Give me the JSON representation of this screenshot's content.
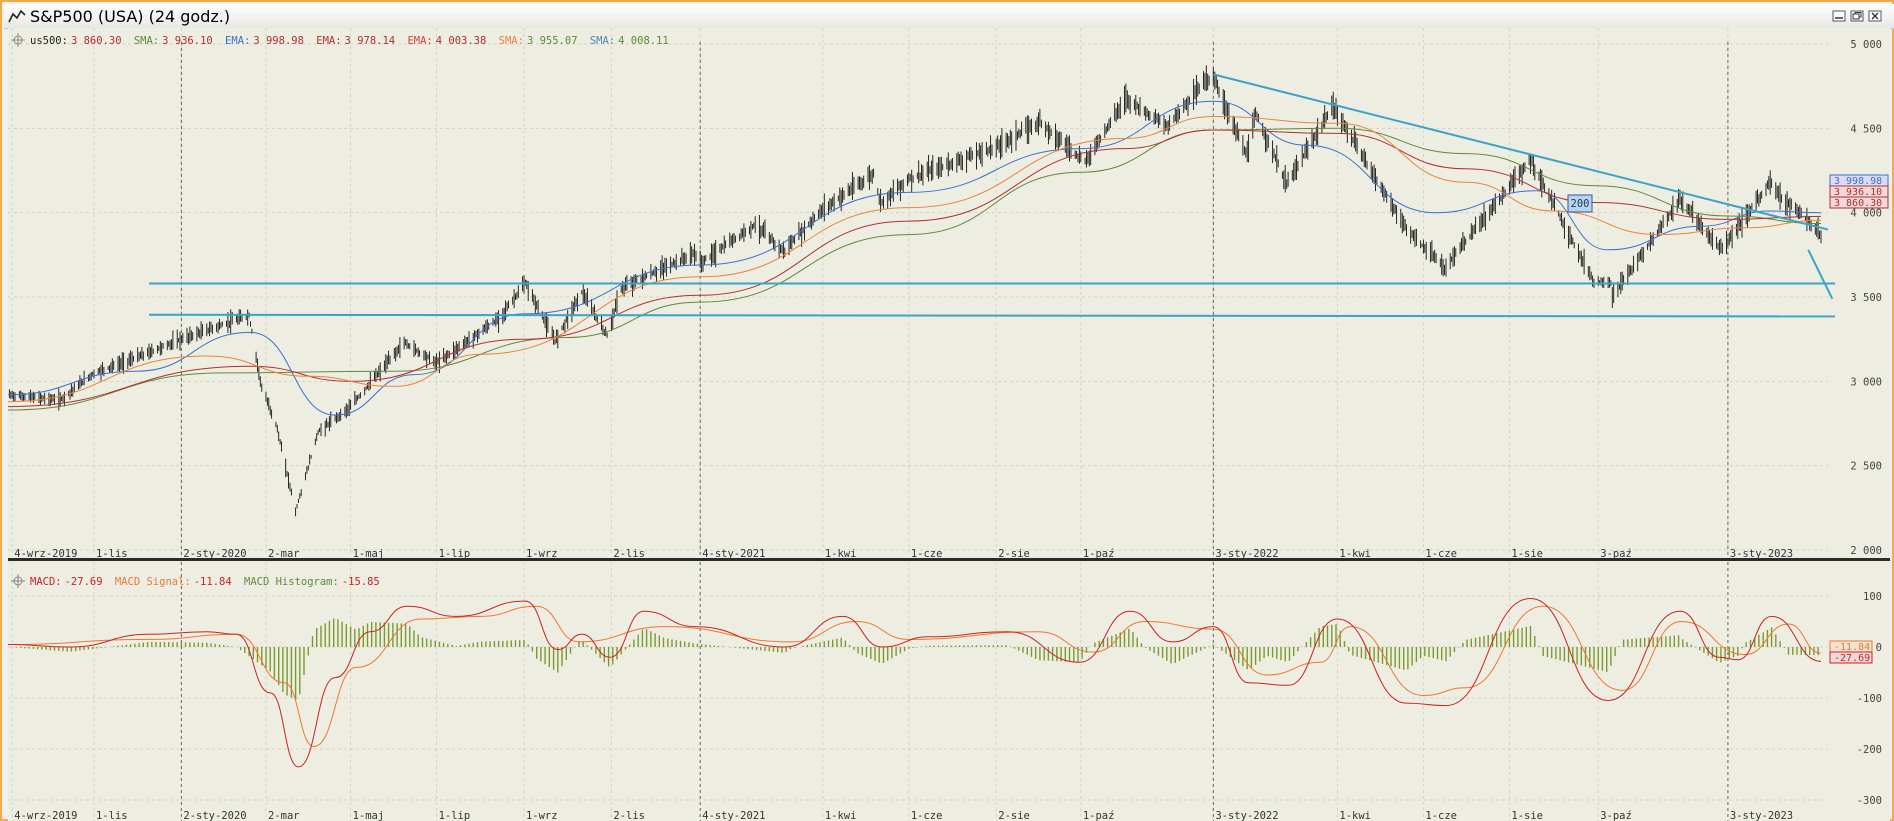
{
  "window": {
    "title": "S&P500 (USA) (24 godz.)",
    "icon": "chart-line-icon",
    "buttons": [
      "minimize-icon",
      "restore-icon",
      "close-icon"
    ]
  },
  "colors": {
    "price": "#111111",
    "sma_green": "#5f8a3a",
    "ema_blue": "#3b6fd0",
    "ema_red1": "#b23030",
    "ema_red2": "#d04040",
    "sma_orange": "#e8843a",
    "sma_blue": "#4a8ac0",
    "trendline": "#3aa3c8",
    "macd": "#cc2222",
    "signal": "#ee7733",
    "histogram": "#7a9a30",
    "background": "#eeede2",
    "grid": "#d2d2c4"
  },
  "legend": {
    "price": {
      "label": "us500:",
      "value": "3 860.30"
    },
    "indicators": [
      {
        "label": "SMA:",
        "value": "3 936.10",
        "color": "#5f8a3a"
      },
      {
        "label": "EMA:",
        "value": "3 998.98",
        "color": "#3b6fd0"
      },
      {
        "label": "EMA:",
        "value": "3 978.14",
        "color": "#b23030"
      },
      {
        "label": "EMA:",
        "value": "4 003.38",
        "color": "#d04040"
      },
      {
        "label": "SMA:",
        "value": "3 955.07",
        "color": "#e8843a"
      },
      {
        "label": "SMA:",
        "value": "4 008.11",
        "color": "#4a8ac0"
      }
    ]
  },
  "macd_legend": {
    "macd": {
      "label": "MACD:",
      "value": "-27.69"
    },
    "signal": {
      "label": "MACD Signal:",
      "value": "-11.84"
    },
    "histogram": {
      "label": "MACD Histogram:",
      "value": "-15.85"
    }
  },
  "price_axis_tags": [
    {
      "value": "3 998.98",
      "color": "#3b6fd0"
    },
    {
      "value": "3 936.10",
      "color": "#b23030"
    },
    {
      "value": "3 860.30",
      "color": "#b23030"
    }
  ],
  "macd_axis_tags": [
    {
      "value": "-11.84",
      "color": "#ee7733"
    },
    {
      "value": "-27.69",
      "color": "#cc2222"
    }
  ],
  "annotation_label": "200",
  "chart_data": [
    {
      "type": "line",
      "title": "S&P500 (USA) (24 godz.)",
      "y_ticks": [
        "5 000",
        "4 500",
        "4 000",
        "3 500",
        "3 000",
        "2 500",
        "2 000"
      ],
      "ylim": [
        2000,
        5000
      ],
      "x_ticks": [
        "4-wrz-2019",
        "1-lis",
        "2-sty-2020",
        "2-mar",
        "1-maj",
        "1-lip",
        "1-wrz",
        "2-lis",
        "4-sty-2021",
        "1-kwi",
        "1-cze",
        "2-sie",
        "1-paź",
        "3-sty-2022",
        "1-kwi",
        "1-cze",
        "1-sie",
        "3-paź",
        "3-sty-2023"
      ],
      "x_tick_dates": [
        "2019-09-04",
        "2019-11-01",
        "2020-01-02",
        "2020-03-02",
        "2020-05-01",
        "2020-07-01",
        "2020-09-01",
        "2020-11-02",
        "2021-01-04",
        "2021-04-01",
        "2021-06-01",
        "2021-08-02",
        "2021-10-01",
        "2022-01-03",
        "2022-04-01",
        "2022-06-01",
        "2022-08-01",
        "2022-10-03",
        "2023-01-03"
      ],
      "xlim": [
        "2019-09-01",
        "2023-03-15"
      ],
      "year_separators": [
        "2020-01-02",
        "2021-01-04",
        "2022-01-03",
        "2023-01-03"
      ],
      "grid": true,
      "series": [
        {
          "name": "us500",
          "points": [
            [
              "2019-09-01",
              2920
            ],
            [
              "2019-10-08",
              2890
            ],
            [
              "2019-11-01",
              3050
            ],
            [
              "2019-12-01",
              3140
            ],
            [
              "2020-01-02",
              3250
            ],
            [
              "2020-02-19",
              3390
            ],
            [
              "2020-02-28",
              2960
            ],
            [
              "2020-03-09",
              2750
            ],
            [
              "2020-03-23",
              2230
            ],
            [
              "2020-04-08",
              2700
            ],
            [
              "2020-05-01",
              2850
            ],
            [
              "2020-06-08",
              3230
            ],
            [
              "2020-07-01",
              3110
            ],
            [
              "2020-08-14",
              3370
            ],
            [
              "2020-09-02",
              3580
            ],
            [
              "2020-09-23",
              3240
            ],
            [
              "2020-10-12",
              3530
            ],
            [
              "2020-10-30",
              3270
            ],
            [
              "2020-11-09",
              3550
            ],
            [
              "2020-12-31",
              3760
            ],
            [
              "2021-01-04",
              3700
            ],
            [
              "2021-02-12",
              3930
            ],
            [
              "2021-03-04",
              3770
            ],
            [
              "2021-04-01",
              4020
            ],
            [
              "2021-05-07",
              4230
            ],
            [
              "2021-05-12",
              4060
            ],
            [
              "2021-06-01",
              4200
            ],
            [
              "2021-08-02",
              4390
            ],
            [
              "2021-09-02",
              4540
            ],
            [
              "2021-10-04",
              4300
            ],
            [
              "2021-11-02",
              4680
            ],
            [
              "2021-12-01",
              4510
            ],
            [
              "2021-12-29",
              4790
            ],
            [
              "2022-01-03",
              4800
            ],
            [
              "2022-01-27",
              4330
            ],
            [
              "2022-02-02",
              4590
            ],
            [
              "2022-02-24",
              4170
            ],
            [
              "2022-03-29",
              4630
            ],
            [
              "2022-05-20",
              3900
            ],
            [
              "2022-06-16",
              3670
            ],
            [
              "2022-07-01",
              3830
            ],
            [
              "2022-08-16",
              4310
            ],
            [
              "2022-09-30",
              3590
            ],
            [
              "2022-10-12",
              3580
            ],
            [
              "2022-10-13",
              3500
            ],
            [
              "2022-11-30",
              4080
            ],
            [
              "2022-12-28",
              3790
            ],
            [
              "2023-01-03",
              3830
            ],
            [
              "2023-02-02",
              4180
            ],
            [
              "2023-02-10",
              4090
            ],
            [
              "2023-03-01",
              3950
            ],
            [
              "2023-03-10",
              3860
            ]
          ]
        },
        {
          "name": "EMA (blue)",
          "points": [
            [
              "2019-09-01",
              2920
            ],
            [
              "2019-12-01",
              3060
            ],
            [
              "2020-02-20",
              3290
            ],
            [
              "2020-04-20",
              2800
            ],
            [
              "2020-06-15",
              3040
            ],
            [
              "2020-09-01",
              3400
            ],
            [
              "2021-01-04",
              3690
            ],
            [
              "2021-06-01",
              4120
            ],
            [
              "2021-10-01",
              4380
            ],
            [
              "2022-01-03",
              4660
            ],
            [
              "2022-03-10",
              4400
            ],
            [
              "2022-06-10",
              4000
            ],
            [
              "2022-08-20",
              4130
            ],
            [
              "2022-10-10",
              3780
            ],
            [
              "2022-12-15",
              3920
            ],
            [
              "2023-02-01",
              4010
            ],
            [
              "2023-03-10",
              3999
            ]
          ]
        },
        {
          "name": "SMA (green)",
          "points": [
            [
              "2019-09-01",
              2830
            ],
            [
              "2020-02-01",
              3050
            ],
            [
              "2020-06-01",
              3060
            ],
            [
              "2020-10-01",
              3260
            ],
            [
              "2021-01-04",
              3470
            ],
            [
              "2021-06-01",
              3870
            ],
            [
              "2021-10-01",
              4240
            ],
            [
              "2022-01-03",
              4490
            ],
            [
              "2022-04-01",
              4500
            ],
            [
              "2022-07-01",
              4350
            ],
            [
              "2022-10-01",
              4160
            ],
            [
              "2023-01-03",
              3980
            ],
            [
              "2023-03-10",
              3936
            ]
          ]
        },
        {
          "name": "EMA (red)",
          "points": [
            [
              "2019-09-01",
              2850
            ],
            [
              "2020-02-20",
              3090
            ],
            [
              "2020-05-01",
              3000
            ],
            [
              "2020-09-01",
              3250
            ],
            [
              "2021-01-04",
              3510
            ],
            [
              "2021-06-01",
              3950
            ],
            [
              "2021-11-01",
              4380
            ],
            [
              "2022-01-03",
              4490
            ],
            [
              "2022-04-01",
              4470
            ],
            [
              "2022-07-01",
              4260
            ],
            [
              "2022-10-01",
              4060
            ],
            [
              "2023-01-03",
              3960
            ],
            [
              "2023-03-10",
              3978
            ]
          ]
        },
        {
          "name": "SMA (orange)",
          "points": [
            [
              "2019-09-01",
              2880
            ],
            [
              "2020-01-20",
              3150
            ],
            [
              "2020-04-01",
              3030
            ],
            [
              "2020-06-01",
              2970
            ],
            [
              "2020-08-01",
              3160
            ],
            [
              "2021-01-04",
              3620
            ],
            [
              "2021-06-01",
              4030
            ],
            [
              "2021-11-01",
              4440
            ],
            [
              "2022-01-03",
              4570
            ],
            [
              "2022-04-01",
              4530
            ],
            [
              "2022-07-01",
              4180
            ],
            [
              "2022-09-01",
              4010
            ],
            [
              "2022-11-15",
              3870
            ],
            [
              "2023-01-15",
              3910
            ],
            [
              "2023-03-10",
              3955
            ]
          ]
        }
      ],
      "trendlines": [
        {
          "name": "resistance",
          "points": [
            [
              "2022-01-03",
              4820
            ],
            [
              "2023-03-15",
              3900
            ]
          ]
        },
        {
          "name": "support-high",
          "points": [
            [
              "2019-12-10",
              3580
            ],
            [
              "2023-03-20",
              3580
            ]
          ]
        },
        {
          "name": "support-low",
          "points": [
            [
              "2019-12-10",
              3395
            ],
            [
              "2023-03-20",
              3385
            ]
          ]
        },
        {
          "name": "projection",
          "points": [
            [
              "2023-03-01",
              3780
            ],
            [
              "2023-03-18",
              3490
            ]
          ]
        }
      ]
    },
    {
      "type": "line",
      "title": "MACD",
      "y_ticks": [
        "100",
        "0",
        "-100",
        "-200",
        "-300"
      ],
      "ylim": [
        -300,
        100
      ],
      "series": [
        {
          "name": "MACD",
          "points": [
            [
              "2019-09-01",
              5
            ],
            [
              "2019-10-15",
              0
            ],
            [
              "2019-12-10",
              25
            ],
            [
              "2020-01-20",
              30
            ],
            [
              "2020-02-10",
              25
            ],
            [
              "2020-03-05",
              -90
            ],
            [
              "2020-03-25",
              -235
            ],
            [
              "2020-04-20",
              -60
            ],
            [
              "2020-05-15",
              30
            ],
            [
              "2020-06-10",
              80
            ],
            [
              "2020-07-15",
              60
            ],
            [
              "2020-09-02",
              90
            ],
            [
              "2020-09-25",
              -5
            ],
            [
              "2020-10-12",
              25
            ],
            [
              "2020-11-01",
              -20
            ],
            [
              "2020-11-25",
              70
            ],
            [
              "2020-12-31",
              40
            ],
            [
              "2021-03-05",
              0
            ],
            [
              "2021-04-15",
              60
            ],
            [
              "2021-05-13",
              0
            ],
            [
              "2021-06-15",
              20
            ],
            [
              "2021-08-10",
              30
            ],
            [
              "2021-09-30",
              -30
            ],
            [
              "2021-11-05",
              70
            ],
            [
              "2021-12-05",
              10
            ],
            [
              "2022-01-03",
              40
            ],
            [
              "2022-01-28",
              -70
            ],
            [
              "2022-02-25",
              -75
            ],
            [
              "2022-04-01",
              55
            ],
            [
              "2022-05-20",
              -110
            ],
            [
              "2022-06-17",
              -115
            ],
            [
              "2022-08-16",
              95
            ],
            [
              "2022-10-10",
              -105
            ],
            [
              "2022-11-30",
              70
            ],
            [
              "2022-12-28",
              -20
            ],
            [
              "2023-01-10",
              -25
            ],
            [
              "2023-02-03",
              60
            ],
            [
              "2023-03-10",
              -28
            ]
          ]
        },
        {
          "name": "MACD Signal",
          "points": [
            [
              "2019-09-01",
              5
            ],
            [
              "2019-12-10",
              15
            ],
            [
              "2020-02-10",
              25
            ],
            [
              "2020-03-15",
              -70
            ],
            [
              "2020-04-05",
              -195
            ],
            [
              "2020-05-05",
              -40
            ],
            [
              "2020-06-20",
              55
            ],
            [
              "2020-08-01",
              60
            ],
            [
              "2020-09-10",
              80
            ],
            [
              "2020-10-10",
              10
            ],
            [
              "2020-12-10",
              40
            ],
            [
              "2021-03-10",
              10
            ],
            [
              "2021-04-25",
              50
            ],
            [
              "2021-06-01",
              15
            ],
            [
              "2021-09-01",
              30
            ],
            [
              "2021-10-10",
              -10
            ],
            [
              "2021-11-15",
              50
            ],
            [
              "2022-01-03",
              35
            ],
            [
              "2022-02-10",
              -55
            ],
            [
              "2022-03-20",
              -30
            ],
            [
              "2022-04-10",
              40
            ],
            [
              "2022-06-01",
              -95
            ],
            [
              "2022-07-01",
              -80
            ],
            [
              "2022-08-25",
              80
            ],
            [
              "2022-10-20",
              -85
            ],
            [
              "2022-12-01",
              50
            ],
            [
              "2023-01-15",
              -15
            ],
            [
              "2023-02-15",
              45
            ],
            [
              "2023-03-10",
              -12
            ]
          ]
        }
      ]
    }
  ]
}
